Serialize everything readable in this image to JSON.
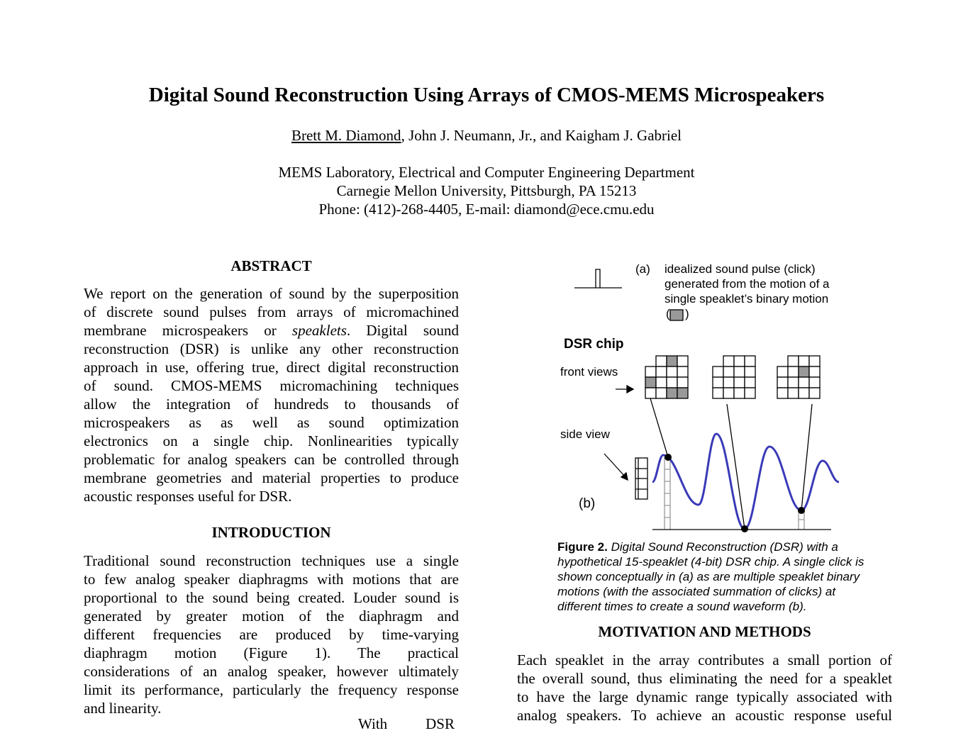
{
  "header": {
    "title": "Digital Sound Reconstruction Using Arrays of CMOS-MEMS Microspeakers",
    "authors": [
      "Brett M. Diamond",
      ", John J. Neumann, Jr., and Kaigham J. Gabriel"
    ],
    "affiliation": [
      "MEMS Laboratory, Electrical and Computer Engineering Department",
      "Carnegie Mellon University, Pittsburgh, PA 15213",
      "Phone: (412)-268-4405, E-mail: diamond@ece.cmu.edu"
    ]
  },
  "abstract": {
    "heading": "ABSTRACT",
    "lines": [
      "We report on the generation of sound by the superposition",
      "of discrete sound pulses from arrays of micromachined",
      [
        "membrane microspeakers or ",
        "speaklets",
        ".  Digital sound"
      ],
      "reconstruction (DSR) is unlike any other reconstruction",
      "approach in use, offering true, direct digital reconstruction",
      "of sound.  CMOS-MEMS micromachining techniques",
      "allow the integration of hundreds to thousands of",
      "microspeakers as as well as sound optimization",
      "electronics on a single chip.  Nonlinearities typically",
      "problematic for analog speakers can be controlled through",
      "membrane geometries and material properties to produce",
      "acoustic responses useful for DSR."
    ]
  },
  "introduction": {
    "heading": "INTRODUCTION",
    "lines": [
      "Traditional sound reconstruction techniques use a single",
      "to few analog speaker diaphragms with motions that are",
      "proportional to the sound being created.  Louder sound is",
      "generated by greater motion of the diaphragm and",
      "different frequencies are produced by time-varying",
      "diaphragm motion (Figure 1).  The practical",
      "considerations of an analog speaker, however ultimately",
      "limit its performance, particularly the frequency response",
      "and linearity."
    ],
    "next_line": "With DSR"
  },
  "figure": {
    "a_label": "(a)",
    "a_text": [
      "idealized sound pulse (click)",
      "generated from the motion of a",
      "single speaklet’s binary motion"
    ],
    "a_paren": [
      "(",
      ")"
    ],
    "chip_label": "DSR chip",
    "front_views": "front views",
    "side_view": "side view",
    "b_label": "(b)",
    "caption": [
      [
        "Figure 2.",
        " Digital Sound Reconstruction (DSR) with a"
      ],
      "hypothetical 15-speaklet (4-bit) DSR chip.  A single click is",
      "shown conceptually in (a) as are multiple speaklet binary",
      "motions (with the associated summation of clicks) at",
      "different times to create a sound waveform (b)."
    ]
  },
  "motivation": {
    "heading": "MOTIVATION AND METHODS",
    "lines": [
      "Each speaklet in the array contributes a small portion of",
      "the overall sound, thus eliminating the need for a speaklet",
      "to have the large dynamic range typically associated with",
      "analog speakers.  To achieve an acoustic response useful"
    ]
  }
}
